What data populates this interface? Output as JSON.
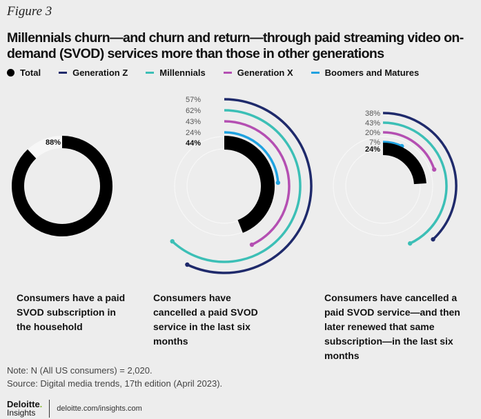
{
  "figure_label": "Figure 3",
  "title": "Millennials churn—and churn and return—through paid streaming video on-demand (SVOD) services more than those in other generations",
  "legend": [
    {
      "label": "Total",
      "color": "#000000",
      "shape": "dot"
    },
    {
      "label": "Generation Z",
      "color": "#1f2a6b",
      "shape": "line"
    },
    {
      "label": "Millennials",
      "color": "#3cbfb6",
      "shape": "line"
    },
    {
      "label": "Generation X",
      "color": "#b44fb2",
      "shape": "line"
    },
    {
      "label": "Boomers and Matures",
      "color": "#1fa2e0",
      "shape": "line"
    }
  ],
  "captions": [
    "Consumers have a paid SVOD subscription in the household",
    "Consumers have cancelled a paid SVOD service in the last six months",
    "Consumers have cancelled a paid SVOD service—and then later renewed that same subscription—in the last six months"
  ],
  "note": "Note: N (All US consumers) = 2,020.",
  "source": "Source: Digital media trends, 17th edition (April 2023).",
  "footer": {
    "logo_main": "Deloitte",
    "logo_dot": ".",
    "logo_sub": "Insights",
    "url": "deloitte.com/insights.com"
  },
  "chart_data": [
    {
      "type": "radial-bar",
      "title": "",
      "unit": "%",
      "series": [
        {
          "name": "Total",
          "value": 88,
          "label": "88%"
        }
      ]
    },
    {
      "type": "radial-bar",
      "title": "",
      "unit": "%",
      "series": [
        {
          "name": "Generation Z",
          "value": 57,
          "label": "57%"
        },
        {
          "name": "Millennials",
          "value": 62,
          "label": "62%"
        },
        {
          "name": "Generation X",
          "value": 43,
          "label": "43%"
        },
        {
          "name": "Boomers and Matures",
          "value": 24,
          "label": "24%"
        },
        {
          "name": "Total",
          "value": 44,
          "label": "44%"
        }
      ]
    },
    {
      "type": "radial-bar",
      "title": "",
      "unit": "%",
      "series": [
        {
          "name": "Generation Z",
          "value": 38,
          "label": "38%"
        },
        {
          "name": "Millennials",
          "value": 43,
          "label": "43%"
        },
        {
          "name": "Generation X",
          "value": 20,
          "label": "20%"
        },
        {
          "name": "Boomers and Matures",
          "value": 7,
          "label": "7%"
        },
        {
          "name": "Total",
          "value": 24,
          "label": "24%"
        }
      ]
    }
  ]
}
